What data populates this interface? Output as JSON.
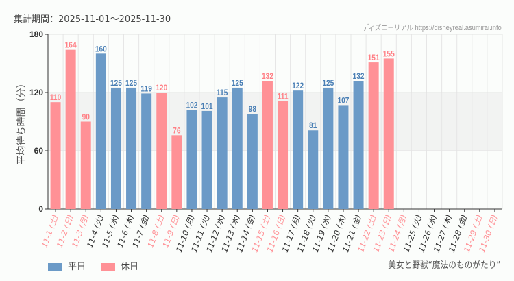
{
  "header": {
    "period": "集計期間：2025-11-01～2025-11-30",
    "source": "ディズニーリアル https://disneyreal.asumirai.info"
  },
  "attraction": "美女と野獣“魔法のものがたり”",
  "legend": {
    "weekday": "平日",
    "holiday": "休日"
  },
  "colors": {
    "weekday": "#6b9ac7",
    "holiday": "#ff9196",
    "weekday_label": "#4a7fb5",
    "holiday_label": "#ff7f85",
    "band": "#eeeeee"
  },
  "chart_data": {
    "type": "bar",
    "ylabel": "平均待ち時間（分）",
    "ylim": [
      0,
      180
    ],
    "yticks": [
      0,
      60,
      120,
      180
    ],
    "shaded_band": [
      60,
      120
    ],
    "grid": true,
    "legend_placement": "bottom-left",
    "categories": [
      "11-1 (土)",
      "11-2 (日)",
      "11-3 (月)",
      "11-4 (火)",
      "11-5 (水)",
      "11-6 (木)",
      "11-7 (金)",
      "11-8 (土)",
      "11-9 (日)",
      "11-10 (月)",
      "11-11 (火)",
      "11-12 (水)",
      "11-13 (木)",
      "11-14 (金)",
      "11-15 (土)",
      "11-16 (日)",
      "11-17 (月)",
      "11-18 (火)",
      "11-19 (水)",
      "11-20 (木)",
      "11-21 (金)",
      "11-22 (土)",
      "11-23 (日)",
      "11-24 (月)",
      "11-25 (火)",
      "11-26 (水)",
      "11-27 (木)",
      "11-28 (金)",
      "11-29 (土)",
      "11-30 (日)"
    ],
    "values": [
      110,
      164,
      90,
      160,
      125,
      125,
      119,
      120,
      76,
      102,
      101,
      115,
      125,
      98,
      132,
      111,
      122,
      81,
      125,
      107,
      132,
      151,
      155,
      null,
      null,
      null,
      null,
      null,
      null,
      null
    ],
    "holiday": [
      true,
      true,
      true,
      false,
      false,
      false,
      false,
      true,
      true,
      false,
      false,
      false,
      false,
      false,
      true,
      true,
      false,
      false,
      false,
      false,
      false,
      true,
      true,
      true,
      false,
      false,
      false,
      false,
      true,
      true
    ]
  }
}
